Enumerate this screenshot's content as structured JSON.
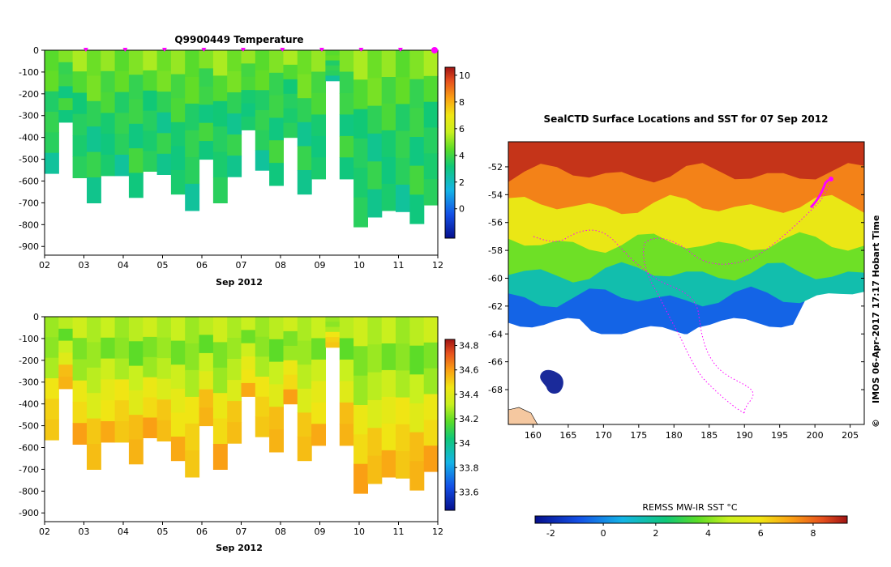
{
  "chart_data": [
    {
      "type": "heatmap",
      "title": "Q9900449  Temperature",
      "xlabel": "Sep 2012",
      "x_ticks": [
        "02",
        "03",
        "04",
        "05",
        "06",
        "07",
        "08",
        "09",
        "10",
        "11",
        "12"
      ],
      "xlim": [
        2,
        12
      ],
      "y_ticks": [
        "0",
        "-100",
        "-200",
        "-300",
        "-400",
        "-500",
        "-600",
        "-700",
        "-800",
        "-900"
      ],
      "ylim": [
        -940,
        0
      ],
      "colorbar_ticks": [
        "10",
        "8",
        "6",
        "4",
        "2",
        "0"
      ],
      "colorbar_range": [
        -2.2,
        10.6
      ],
      "profile_max_depths": [
        565,
        330,
        585,
        700,
        575,
        575,
        675,
        555,
        570,
        660,
        735,
        500,
        700,
        580,
        365,
        550,
        620,
        400,
        660,
        590,
        140,
        590,
        810,
        765,
        735,
        740,
        795,
        710
      ],
      "value_levels": [
        4.9,
        4.3,
        3.7,
        3.3,
        3.6,
        3.1
      ],
      "profile_markers_days": [
        3,
        4,
        5,
        6,
        7,
        8,
        9,
        10,
        11
      ]
    },
    {
      "type": "heatmap",
      "title": "",
      "xlabel": "Sep 2012",
      "x_ticks": [
        "02",
        "03",
        "04",
        "05",
        "06",
        "07",
        "08",
        "09",
        "10",
        "11",
        "12"
      ],
      "xlim": [
        2,
        12
      ],
      "y_ticks": [
        "0",
        "-100",
        "-200",
        "-300",
        "-400",
        "-500",
        "-600",
        "-700",
        "-800",
        "-900"
      ],
      "ylim": [
        -940,
        0
      ],
      "colorbar_ticks": [
        "34.8",
        "34.6",
        "34.4",
        "34.2",
        "34",
        "33.8",
        "33.6"
      ],
      "colorbar_range": [
        33.45,
        34.85
      ],
      "value_levels": [
        34.3,
        34.22,
        34.3,
        34.42,
        34.5,
        34.56
      ]
    },
    {
      "type": "heatmap",
      "title": "SealCTD Surface Locations and SST for 07 Sep 2012",
      "x_ticks": [
        "160",
        "165",
        "170",
        "175",
        "180",
        "185",
        "190",
        "195",
        "200",
        "205"
      ],
      "xlim": [
        156.5,
        207
      ],
      "y_ticks": [
        "-52",
        "-54",
        "-56",
        "-58",
        "-60",
        "-62",
        "-64",
        "-66",
        "-68"
      ],
      "ylim": [
        -70.5,
        -50.2
      ],
      "colorbar_label": "REMSS MW-IR SST °C",
      "colorbar_ticks": [
        "-2",
        "0",
        "2",
        "4",
        "6",
        "8"
      ],
      "colorbar_range": [
        -2.6,
        9.3
      ],
      "sst_bands": [
        {
          "lat_top": -50.2,
          "temp": 8.8
        },
        {
          "lat_top": -52.5,
          "temp": 7.6
        },
        {
          "lat_top": -54.8,
          "temp": 5.8
        },
        {
          "lat_top": -57.5,
          "temp": 3.8
        },
        {
          "lat_top": -59.6,
          "temp": 1.6
        },
        {
          "lat_top": -61.4,
          "temp": -0.6
        }
      ]
    }
  ],
  "side_label": "IMOS 06-Apr-2017 17:17 Hobart Time",
  "copyright_symbol": "©",
  "colors": {
    "marker": "#ff00ff",
    "track": "#ff00ff",
    "land": "#f5c8a0"
  }
}
